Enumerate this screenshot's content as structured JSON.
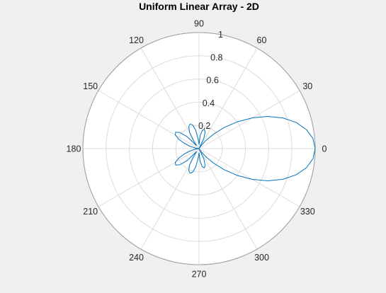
{
  "chart_data": {
    "type": "line",
    "coordinate_system": "polar",
    "title": "Uniform Linear Array - 2D",
    "theta_unit": "degrees",
    "theta_ticks": [
      0,
      30,
      60,
      90,
      120,
      150,
      180,
      210,
      240,
      270,
      300,
      330
    ],
    "theta_tick_labels": [
      "0",
      "30",
      "60",
      "90",
      "120",
      "150",
      "180",
      "210",
      "240",
      "270",
      "300",
      "330"
    ],
    "r_ticks": [
      0.2,
      0.4,
      0.6,
      0.8,
      1
    ],
    "r_tick_labels": [
      "0.2",
      "0.4",
      "0.6",
      "0.8",
      "1"
    ],
    "rlim": [
      0,
      1
    ],
    "radial_label_angle_deg": 80,
    "grid": true,
    "series": [
      {
        "color": "#0072bd",
        "theta_deg": [
          0,
          5,
          10,
          15,
          20,
          25,
          30,
          35,
          40,
          45,
          50,
          55,
          60,
          65,
          70,
          75,
          80,
          85,
          90,
          95,
          100,
          105,
          110,
          115,
          120,
          125,
          130,
          135,
          140,
          145,
          150,
          155,
          160,
          165,
          170,
          175,
          180,
          185,
          190,
          195,
          200,
          205,
          210,
          215,
          220,
          225,
          230,
          235,
          240,
          245,
          250,
          255,
          260,
          265,
          270,
          275,
          280,
          285,
          290,
          295,
          300,
          305,
          310,
          315,
          320,
          325,
          330,
          335,
          340,
          345,
          350,
          355,
          360
        ],
        "r": [
          1.0,
          0.985,
          0.94,
          0.868,
          0.771,
          0.656,
          0.53,
          0.403,
          0.283,
          0.177,
          0.091,
          0.03,
          0.0,
          0.099,
          0.155,
          0.172,
          0.157,
          0.111,
          0.035,
          0.079,
          0.159,
          0.21,
          0.225,
          0.209,
          0.162,
          0.086,
          0.032,
          0.147,
          0.217,
          0.246,
          0.236,
          0.192,
          0.136,
          0.083,
          0.036,
          0.006,
          0.0,
          0.006,
          0.036,
          0.083,
          0.136,
          0.192,
          0.236,
          0.246,
          0.217,
          0.147,
          0.032,
          0.086,
          0.162,
          0.209,
          0.225,
          0.21,
          0.159,
          0.079,
          0.035,
          0.111,
          0.157,
          0.172,
          0.155,
          0.099,
          0.0,
          0.03,
          0.091,
          0.177,
          0.283,
          0.403,
          0.53,
          0.656,
          0.771,
          0.868,
          0.94,
          0.985,
          1.0
        ]
      }
    ]
  }
}
